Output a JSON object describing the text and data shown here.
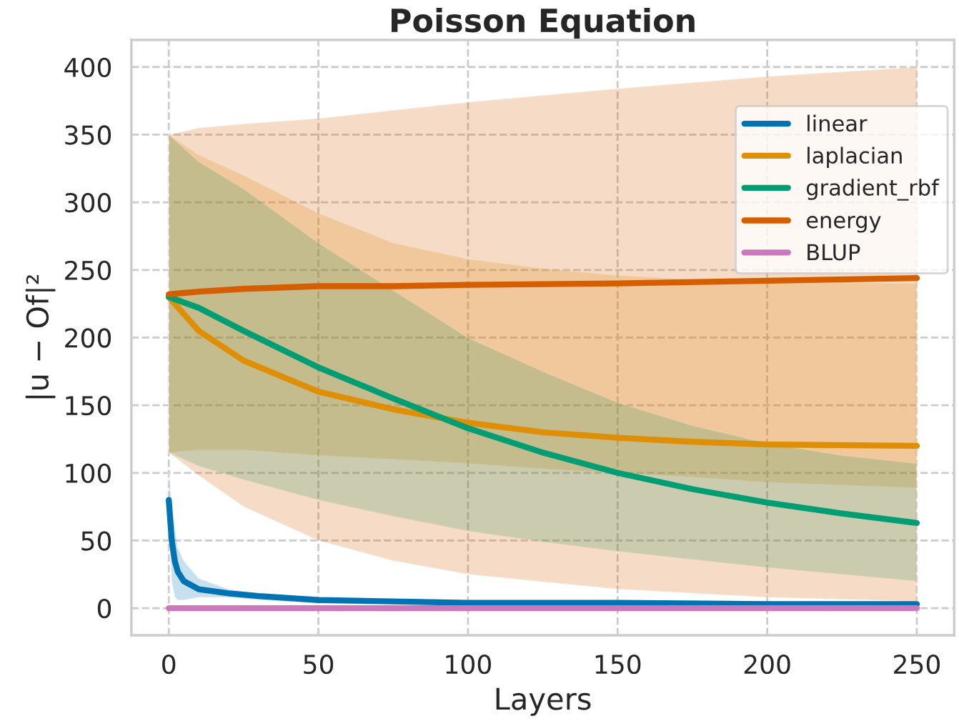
{
  "chart_data": {
    "type": "line",
    "title": "Poisson Equation",
    "xlabel": "Layers",
    "ylabel": "|u − Of|²",
    "xlim": [
      -12.5,
      262.5
    ],
    "xticks": [
      0,
      50,
      100,
      150,
      200,
      250
    ],
    "ylim": [
      -20,
      420
    ],
    "yticks": [
      0,
      50,
      100,
      150,
      200,
      250,
      300,
      350,
      400
    ],
    "grid": true,
    "legend": "top right",
    "marker": "none",
    "line_style": "solid",
    "series": [
      {
        "name": "linear",
        "color": "#0173b2",
        "x": [
          0,
          1,
          2,
          3,
          5,
          10,
          20,
          30,
          50,
          100,
          150,
          200,
          250
        ],
        "values": [
          80,
          50,
          35,
          27,
          20,
          14,
          11,
          9,
          6,
          4,
          4,
          3,
          3
        ],
        "lower": [
          60,
          20,
          8,
          6,
          6,
          8,
          8,
          6,
          4,
          3,
          3,
          3,
          3
        ],
        "upper": [
          100,
          75,
          60,
          45,
          35,
          22,
          14,
          11,
          7,
          5,
          4,
          4,
          4
        ]
      },
      {
        "name": "laplacian",
        "color": "#de8f05",
        "x": [
          0,
          10,
          25,
          50,
          75,
          100,
          125,
          150,
          175,
          200,
          250
        ],
        "values": [
          230,
          205,
          183,
          160,
          147,
          137,
          130,
          126,
          123,
          121,
          120
        ],
        "lower": [
          115,
          117,
          117,
          113,
          110,
          107,
          103,
          100,
          97,
          93,
          89
        ],
        "upper": [
          350,
          335,
          320,
          292,
          270,
          258,
          251,
          246,
          243,
          241,
          240
        ]
      },
      {
        "name": "gradient_rbf",
        "color": "#029e73",
        "x": [
          0,
          10,
          25,
          50,
          75,
          100,
          125,
          150,
          175,
          200,
          225,
          250
        ],
        "values": [
          230,
          222,
          205,
          178,
          155,
          133,
          115,
          100,
          88,
          78,
          70,
          63
        ],
        "lower": [
          115,
          105,
          95,
          80,
          68,
          57,
          49,
          42,
          36,
          30,
          25,
          20
        ],
        "upper": [
          350,
          330,
          310,
          270,
          235,
          200,
          175,
          152,
          135,
          122,
          113,
          107
        ]
      },
      {
        "name": "energy",
        "color": "#d55e00",
        "x": [
          0,
          10,
          25,
          50,
          75,
          100,
          150,
          200,
          250
        ],
        "values": [
          232,
          234,
          236,
          238,
          238,
          239,
          240,
          242,
          244
        ],
        "lower": [
          115,
          98,
          75,
          50,
          35,
          25,
          14,
          8,
          5
        ],
        "upper": [
          350,
          355,
          358,
          362,
          368,
          374,
          384,
          393,
          400
        ]
      },
      {
        "name": "BLUP",
        "color": "#cc78bc",
        "x": [
          0,
          250
        ],
        "values": [
          0,
          0
        ]
      }
    ]
  }
}
